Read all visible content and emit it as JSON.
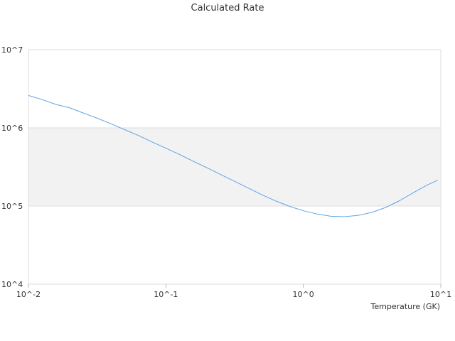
{
  "chart_data": {
    "type": "line",
    "title": "Calculated Rate",
    "xlabel": "Temperature (GK)",
    "ylabel": "",
    "x_scale": "log",
    "y_scale": "log",
    "xlim": [
      0.01,
      10
    ],
    "ylim": [
      10000,
      10000000
    ],
    "x_tick_labels": [
      "10^-2",
      "10^-1",
      "10^0",
      "10^1"
    ],
    "y_tick_labels": [
      "10^7",
      "10^6",
      "10^5",
      "10^4"
    ],
    "grid": "horizontal",
    "legend": "none",
    "colors": {
      "line": "#5ea3e6",
      "band": "#f2f2f2",
      "gridline": "#dddddd"
    },
    "series": [
      {
        "x": [
          0.01,
          0.0126,
          0.0158,
          0.02,
          0.0251,
          0.0316,
          0.0398,
          0.0501,
          0.0631,
          0.0794,
          0.1,
          0.126,
          0.158,
          0.2,
          0.251,
          0.316,
          0.398,
          0.501,
          0.631,
          0.794,
          1.0,
          1.26,
          1.58,
          2.0,
          2.51,
          3.16,
          3.98,
          5.01,
          6.31,
          7.94,
          9.5
        ],
        "y": [
          2600000,
          2300000,
          2000000,
          1800000,
          1550000,
          1330000,
          1130000,
          950000,
          800000,
          660000,
          550000,
          455000,
          375000,
          308000,
          252000,
          207000,
          170000,
          139000,
          116000,
          99000,
          87000,
          79000,
          74000,
          73000,
          76000,
          83000,
          96000,
          117000,
          148000,
          185000,
          214000
        ]
      }
    ]
  }
}
